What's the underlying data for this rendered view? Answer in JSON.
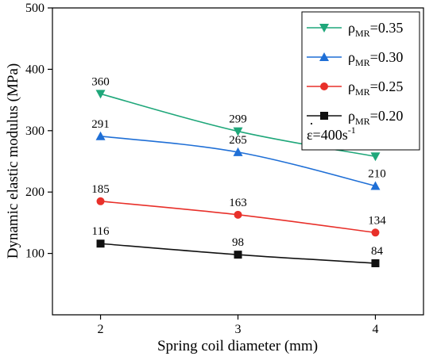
{
  "chart_data": {
    "type": "line",
    "xlabel": "Spring coil diameter (mm)",
    "ylabel": "Dynamic elastic modulus (MPa)",
    "x": [
      2,
      3,
      4
    ],
    "xticks": [
      2,
      3,
      4
    ],
    "xlim": [
      1.65,
      4.35
    ],
    "ylim": [
      0,
      500
    ],
    "yticks": [
      100,
      200,
      300,
      400,
      500
    ],
    "grid": false,
    "legend_position": "top-right",
    "series": [
      {
        "name": "ρMR=0.35",
        "symbol": "ρ",
        "subscript": "MR",
        "value_text": "=0.35",
        "values": [
          360,
          299,
          258
        ],
        "labels": [
          "360",
          "299",
          "258"
        ],
        "color": "#1fa77a",
        "marker": "triangle-down"
      },
      {
        "name": "ρMR=0.30",
        "symbol": "ρ",
        "subscript": "MR",
        "value_text": "=0.30",
        "values": [
          291,
          265,
          210
        ],
        "labels": [
          "291",
          "265",
          "210"
        ],
        "color": "#1f6fd6",
        "marker": "triangle-up"
      },
      {
        "name": "ρMR=0.25",
        "symbol": "ρ",
        "subscript": "MR",
        "value_text": "=0.25",
        "values": [
          185,
          163,
          134
        ],
        "labels": [
          "185",
          "163",
          "134"
        ],
        "color": "#e8302a",
        "marker": "circle"
      },
      {
        "name": "ρMR=0.20",
        "symbol": "ρ",
        "subscript": "MR",
        "value_text": "=0.20",
        "values": [
          116,
          98,
          84
        ],
        "labels": [
          "116",
          "98",
          "84"
        ],
        "color": "#111111",
        "marker": "square"
      }
    ],
    "annotation": {
      "text": "ε=400s",
      "superscript": "-1",
      "dot": "·"
    }
  }
}
